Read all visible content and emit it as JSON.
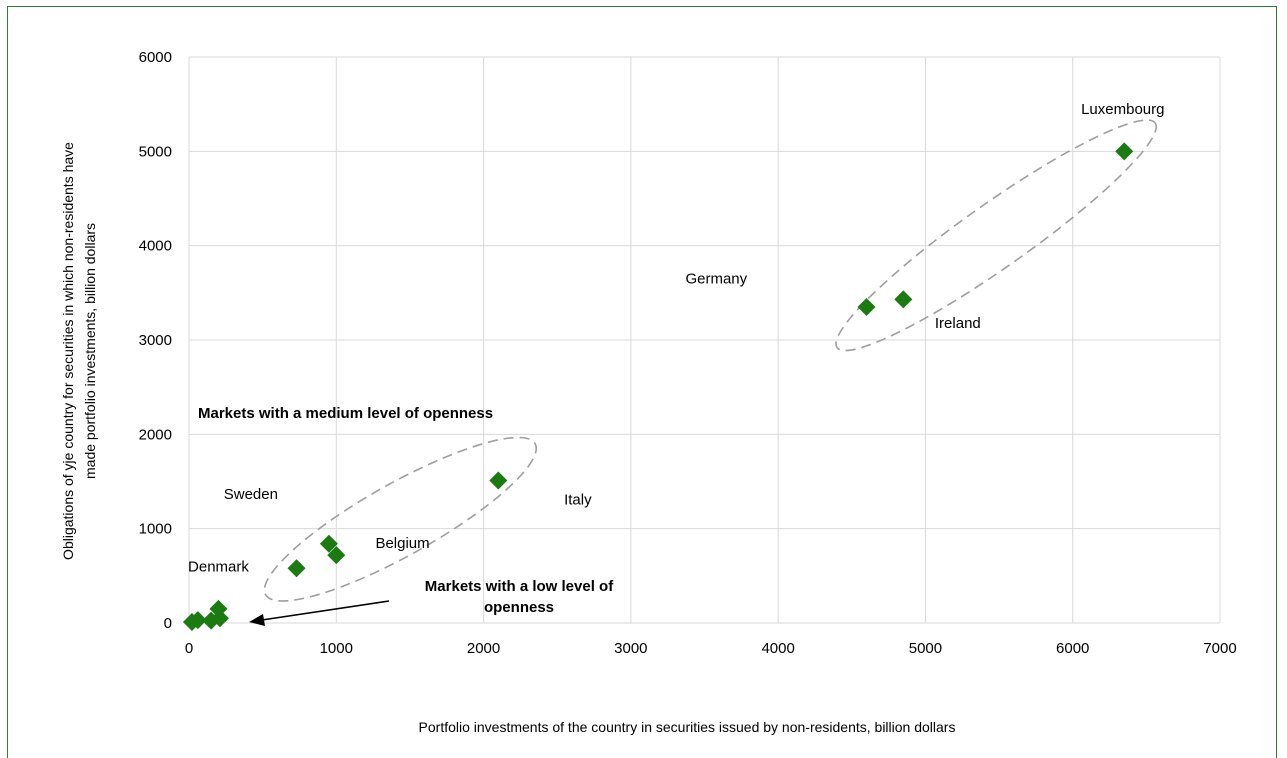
{
  "chart_data": {
    "type": "scatter",
    "title": "",
    "xlabel": "Portfolio investments of the country in securities issued by non-residents, billion dollars",
    "ylabel": "Obligations of yje country for securities in which non-residents have made portfolio investments, billion dollars",
    "xlim": [
      0,
      7000
    ],
    "ylim": [
      0,
      6000
    ],
    "x_ticks": [
      "0",
      "1000",
      "2000",
      "3000",
      "4000",
      "5000",
      "6000",
      "7000"
    ],
    "y_ticks": [
      "0",
      "1000",
      "2000",
      "3000",
      "4000",
      "5000",
      "6000"
    ],
    "grid": true,
    "legend": "none",
    "marker_color": "#1b7a12",
    "points": [
      {
        "x": 6350,
        "y": 5000
      },
      {
        "x": 4850,
        "y": 3430
      },
      {
        "x": 4600,
        "y": 3350
      },
      {
        "x": 2100,
        "y": 1510
      },
      {
        "x": 950,
        "y": 840
      },
      {
        "x": 1000,
        "y": 720
      },
      {
        "x": 730,
        "y": 580
      },
      {
        "x": 200,
        "y": 150
      },
      {
        "x": 210,
        "y": 50
      },
      {
        "x": 150,
        "y": 25
      },
      {
        "x": 60,
        "y": 30
      },
      {
        "x": 20,
        "y": 10
      }
    ],
    "point_labels": [
      {
        "text": "Luxembourg",
        "x": 6340,
        "y": 5450
      },
      {
        "text": "Germany",
        "x": 3580,
        "y": 3650
      },
      {
        "text": "Ireland",
        "x": 5220,
        "y": 3180
      },
      {
        "text": "Sweden",
        "x": 420,
        "y": 1370
      },
      {
        "text": "Italy",
        "x": 2640,
        "y": 1310
      },
      {
        "text": "Belgium",
        "x": 1450,
        "y": 850
      },
      {
        "text": "Denmark",
        "x": 200,
        "y": 600
      }
    ],
    "annotations": {
      "medium": "Markets with a medium level of openness",
      "low_line1": "Markets with a low level of",
      "low_line2": "openness"
    }
  }
}
